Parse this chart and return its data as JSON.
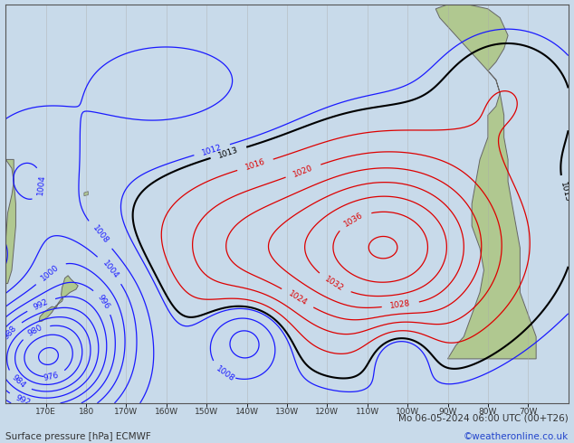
{
  "title_left": "Surface pressure [hPa] ECMWF",
  "title_right": "Mo 06-05-2024 06:00 UTC (00+T26)",
  "watermark": "©weatheronline.co.uk",
  "bg_color": "#c8daea",
  "land_color_nz": "#b8cfa8",
  "land_color_sa": "#b8d4a0",
  "land_color_ca": "#b8d4a0",
  "ocean_color": "#c8daea",
  "border_color": "#555555",
  "contour_color_blue": "#1a1aff",
  "contour_color_red": "#dd0000",
  "contour_color_black": "#000000",
  "figsize": [
    6.34,
    4.9
  ],
  "dpi": 100,
  "text_color": "#333333",
  "watermark_color": "#2244cc",
  "lon_min": 160,
  "lon_max": 300,
  "lat_min": -65,
  "lat_max": 25,
  "xticks": [
    170,
    180,
    190,
    200,
    210,
    220,
    230,
    240,
    250,
    260,
    270,
    280,
    290
  ],
  "xtick_labels": [
    "170E",
    "180",
    "170W",
    "160W",
    "150W",
    "140W",
    "130W",
    "120W",
    "110W",
    "100W",
    "90W",
    "80W",
    "70W"
  ]
}
